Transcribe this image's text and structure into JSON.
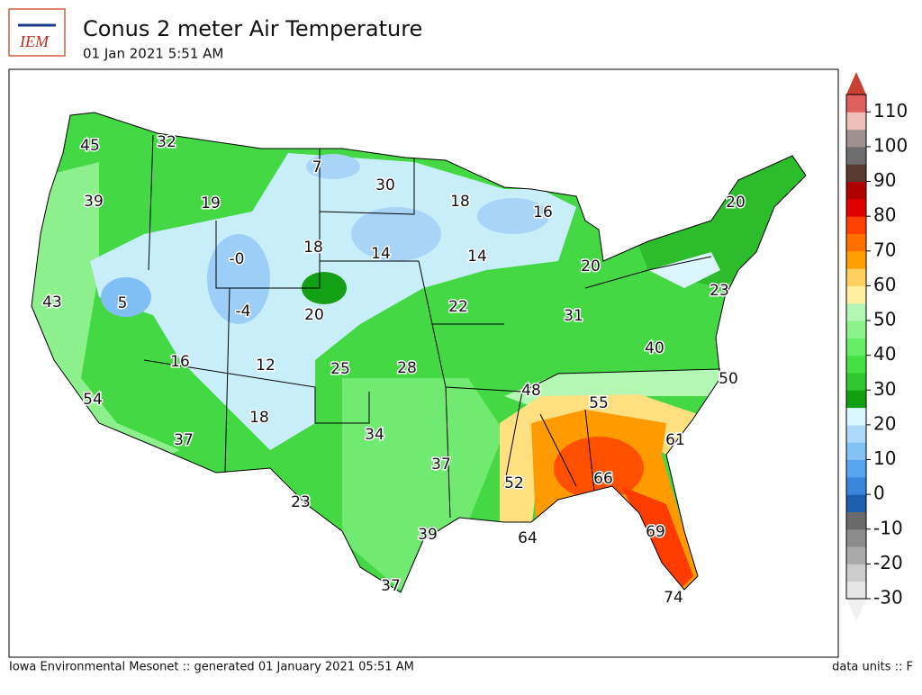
{
  "header": {
    "logo": "IEM",
    "title": "Conus 2 meter Air Temperature",
    "subtitle": "01 Jan 2021 5:51 AM"
  },
  "stations": [
    "45",
    "32",
    "7",
    "30",
    "18",
    "16",
    "20",
    "39",
    "19",
    "18",
    "-0",
    "14",
    "14",
    "20",
    "23",
    "43",
    "5",
    "-4",
    "20",
    "22",
    "31",
    "40",
    "16",
    "12",
    "25",
    "28",
    "48",
    "55",
    "50",
    "54",
    "18",
    "34",
    "61",
    "37",
    "37",
    "52",
    "66",
    "23",
    "64",
    "69",
    "39",
    "37",
    "74"
  ],
  "colorbar": {
    "lim": [
      -30,
      115
    ],
    "ticks": [
      -30,
      -20,
      -10,
      0,
      10,
      20,
      30,
      40,
      50,
      60,
      70,
      80,
      90,
      100,
      110
    ],
    "colors": [
      "#e6e6e6",
      "#cccccc",
      "#aaaaaa",
      "#8c8c8c",
      "#6a6a6a",
      "#1c5fae",
      "#3a86dc",
      "#56a6f2",
      "#84c2f6",
      "#acd8fa",
      "#dcf6ff",
      "#10a010",
      "#30c830",
      "#44e044",
      "#66ee66",
      "#8cf28c",
      "#b4f6b4",
      "#fff0a0",
      "#ffd060",
      "#ffa000",
      "#ff7000",
      "#ff4000",
      "#e00000",
      "#b00000",
      "#5a3a30",
      "#6e6e6e",
      "#a09090",
      "#f0c0b8",
      "#e06060"
    ],
    "under_color": "#f0f0f0",
    "over_color": "#c84030"
  },
  "footer": {
    "left": "Iowa Environmental Mesonet :: generated 01 January 2021 05:51 AM",
    "right": "data units :: F"
  }
}
